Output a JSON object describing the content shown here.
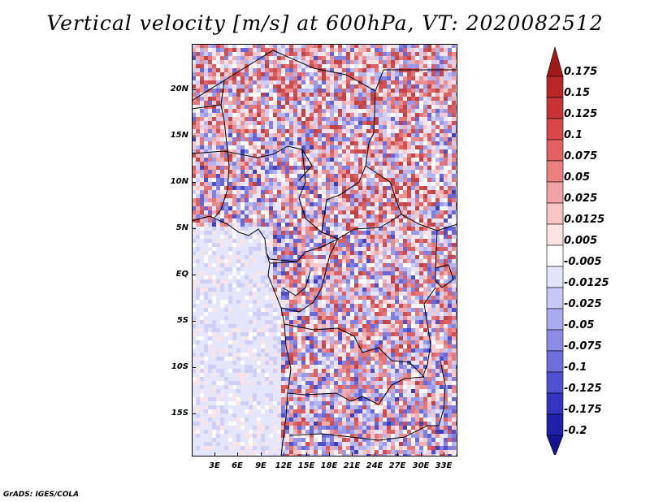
{
  "title": "Vertical velocity [m/s] at 600hPa, VT: 2020082512",
  "credit": "GrADS: IGES/COLA",
  "map": {
    "variable": "Vertical velocity",
    "units": "m/s",
    "level": "600hPa",
    "valid_time": "2020082512",
    "lat_labels": [
      "20N",
      "15N",
      "10N",
      "5N",
      "EQ",
      "5S",
      "10S",
      "15S"
    ],
    "lon_labels": [
      "3E",
      "6E",
      "9E",
      "12E",
      "15E",
      "18E",
      "21E",
      "24E",
      "27E",
      "30E",
      "33E"
    ]
  },
  "colorbar": {
    "labels": [
      "0.175",
      "0.15",
      "0.125",
      "0.1",
      "0.075",
      "0.05",
      "0.025",
      "0.0125",
      "0.005",
      "-0.005",
      "-0.0125",
      "-0.025",
      "-0.05",
      "-0.075",
      "-0.1",
      "-0.125",
      "-0.175",
      "-0.2"
    ],
    "colors": [
      "#a01818",
      "#b82626",
      "#c83434",
      "#d84848",
      "#e26262",
      "#ea8080",
      "#f2a2a2",
      "#f8c4c4",
      "#fce4e4",
      "#ffffff",
      "#e4e4fc",
      "#c8c8f6",
      "#aaaaee",
      "#8c8ce6",
      "#6e6edc",
      "#5050d0",
      "#3434c0",
      "#2020a8",
      "#141490"
    ]
  }
}
